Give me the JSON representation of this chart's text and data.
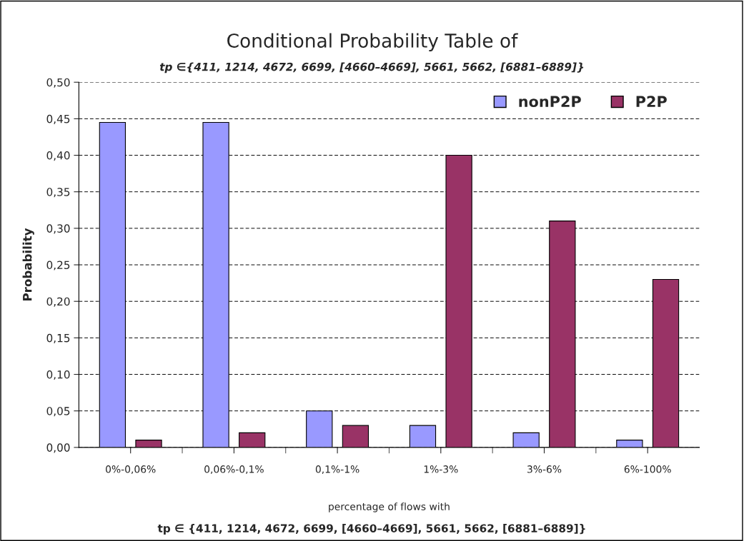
{
  "chart_data": {
    "type": "bar",
    "title": "Conditional Probability Table of",
    "subtitle": "tp ∈{411, 1214, 4672, 6699, [4660–4669], 5661, 5662, [6881–6889]}",
    "xlabel": "percentage of flows with",
    "ylabel": "Probability",
    "annotations": [
      "tp ∈ {411, 1214, 4672, 6699, [4660–4669], 5661, 5662, [6881–6889]}"
    ],
    "categories": [
      "0%-0,06%",
      "0,06%-0,1%",
      "0,1%-1%",
      "1%-3%",
      "3%-6%",
      "6%-100%"
    ],
    "series": [
      {
        "name": "nonP2P",
        "color": "#9999ff",
        "values": [
          0.445,
          0.445,
          0.05,
          0.03,
          0.02,
          0.01
        ]
      },
      {
        "name": "P2P",
        "color": "#993366",
        "values": [
          0.01,
          0.02,
          0.03,
          0.4,
          0.31,
          0.23
        ]
      }
    ],
    "ylim": [
      0,
      0.5
    ],
    "yticks": [
      {
        "value": 0,
        "label": "0,00"
      },
      {
        "value": 0.05,
        "label": "0,05"
      },
      {
        "value": 0.1,
        "label": "0,10"
      },
      {
        "value": 0.15,
        "label": "0,15"
      },
      {
        "value": 0.2,
        "label": "0,20"
      },
      {
        "value": 0.25,
        "label": "0,25"
      },
      {
        "value": 0.3,
        "label": "0,30"
      },
      {
        "value": 0.35,
        "label": "0,35"
      },
      {
        "value": 0.4,
        "label": "0,40"
      },
      {
        "value": 0.45,
        "label": "0,45"
      },
      {
        "value": 0.5,
        "label": "0,50"
      }
    ],
    "grid": "y",
    "line_style": "dashed",
    "legend": "top right"
  }
}
